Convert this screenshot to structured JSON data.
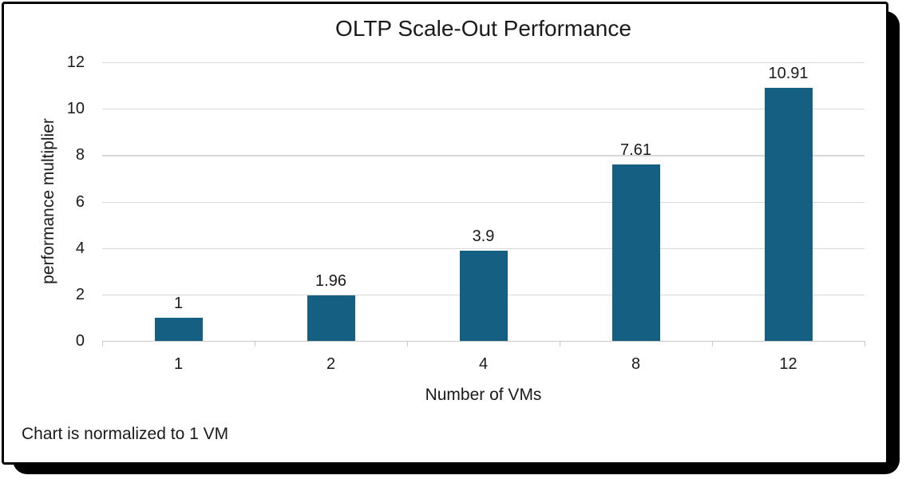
{
  "chart_data": {
    "type": "bar",
    "title": "OLTP Scale-Out Performance",
    "categories": [
      "1",
      "2",
      "4",
      "8",
      "12"
    ],
    "values": [
      1,
      1.96,
      3.9,
      7.61,
      10.91
    ],
    "data_labels": [
      "1",
      "1.96",
      "3.9",
      "7.61",
      "10.91"
    ],
    "xlabel": "Number of VMs",
    "ylabel": "performance multiplier",
    "ylim": [
      0,
      12
    ],
    "yticks": [
      0,
      2,
      4,
      6,
      8,
      10,
      12
    ],
    "grid": true,
    "legend": "none",
    "footnote": "Chart is normalized to 1 VM",
    "colors": {
      "bar": "#156082",
      "gridline": "#d9d9d9",
      "axis_line": "#c9c9c9",
      "tick": "#c9c9c9",
      "text": "#1a1a1a",
      "card_border": "#000000",
      "card_shadow": "#000000",
      "background": "#ffffff"
    }
  }
}
